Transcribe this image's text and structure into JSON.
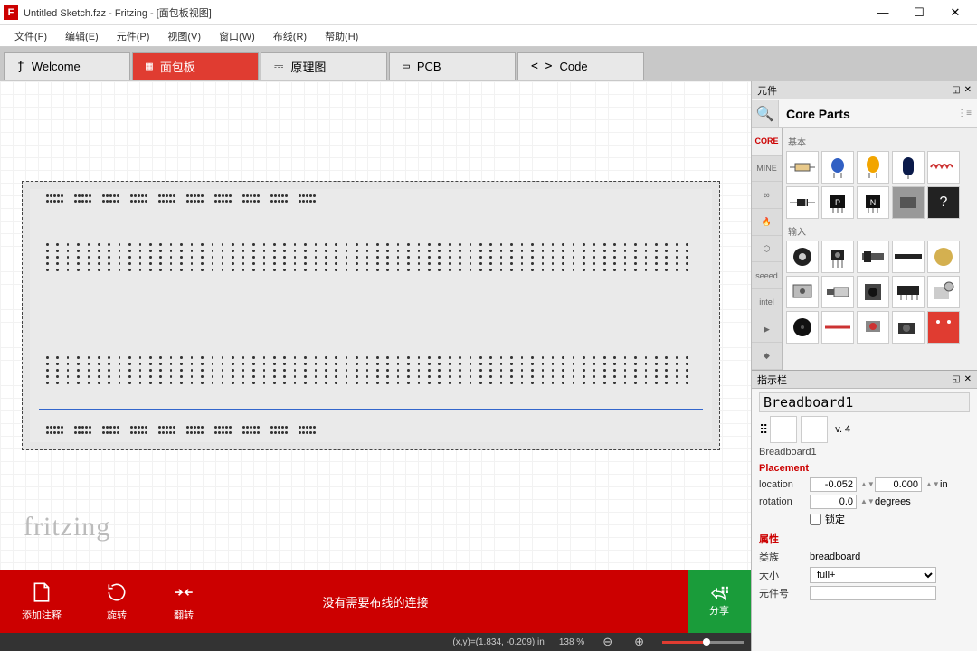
{
  "title": "Untitled Sketch.fzz - Fritzing - [面包板视图]",
  "menus": [
    "文件(F)",
    "编辑(E)",
    "元件(P)",
    "视图(V)",
    "窗口(W)",
    "布线(R)",
    "帮助(H)"
  ],
  "tabs": [
    {
      "icon": "ƒ",
      "label": "Welcome"
    },
    {
      "icon": "▦",
      "label": "面包板",
      "active": true
    },
    {
      "icon": "⎓",
      "label": "原理图"
    },
    {
      "icon": "▭",
      "label": "PCB"
    },
    {
      "icon": "< >",
      "label": "Code"
    }
  ],
  "watermark": "fritzing",
  "bottom": {
    "annotate": "添加注释",
    "rotate": "旋转",
    "flip": "翻转",
    "message": "没有需要布线的连接",
    "share": "分享"
  },
  "status": {
    "coords": "(x,y)=(1.834, -0.209) in",
    "zoom": "138 %"
  },
  "parts_panel": {
    "heading": "元件",
    "title": "Core Parts",
    "bins": [
      "CORE",
      "MINE",
      "∞",
      "🔥",
      "⬡",
      "seeed",
      "intel",
      "▶",
      "◆"
    ],
    "section1": "基本",
    "section2": "输入"
  },
  "inspector": {
    "heading": "指示栏",
    "object": "Breadboard1",
    "version": "v. 4",
    "subtitle": "Breadboard1",
    "placement": "Placement",
    "loc_label": "location",
    "loc_x": "-0.052",
    "loc_y": "0.000",
    "loc_unit": "in",
    "rot_label": "rotation",
    "rot": "0.0",
    "rot_unit": "degrees",
    "lock": "锁定",
    "attrs": "属性",
    "family_label": "类族",
    "family": "breadboard",
    "size_label": "大小",
    "size": "full+",
    "partno_label": "元件号"
  },
  "colors": {
    "accent": "#e03c31",
    "red": "#cc0000",
    "green": "#1a9c3a"
  }
}
